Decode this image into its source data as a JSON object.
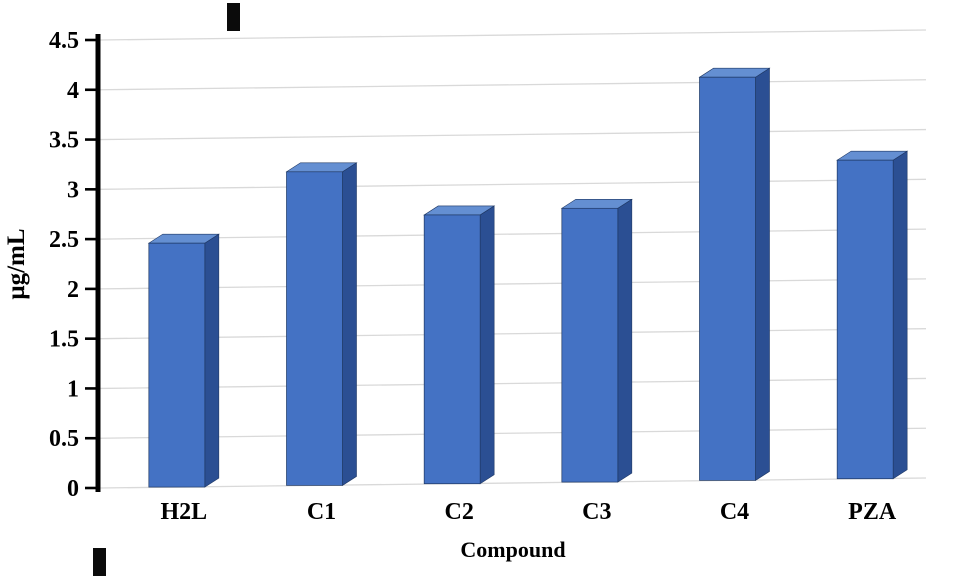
{
  "chart_data": {
    "type": "bar",
    "style": "3d-column",
    "title": "",
    "xlabel": "Compound",
    "ylabel": "μg/mL",
    "categories": [
      "H2L",
      "C1",
      "C2",
      "C3",
      "C4",
      "PZA"
    ],
    "values": [
      2.45,
      3.15,
      2.7,
      2.75,
      4.05,
      3.2
    ],
    "ylim": [
      0,
      4.5
    ],
    "ytick_step": 0.5,
    "yticks": [
      "0",
      "0.5",
      "1",
      "1.5",
      "2",
      "2.5",
      "3",
      "3.5",
      "4",
      "4.5"
    ],
    "grid": true,
    "legend_position": "none",
    "colors": {
      "bar_front": "#4472C4",
      "bar_side": "#2B4F93",
      "bar_top": "#648FD2",
      "bar_edge": "#1F3864",
      "gridline": "#D9D9D9",
      "axis": "#000000",
      "text": "#000000"
    }
  }
}
